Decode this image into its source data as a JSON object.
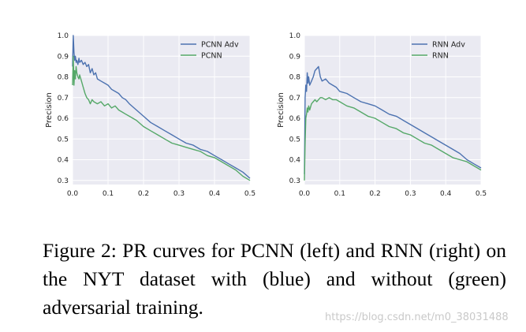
{
  "chart_data": [
    {
      "type": "line",
      "title": "",
      "xlabel": "",
      "ylabel": "Precision",
      "xlim": [
        0.0,
        0.5
      ],
      "ylim": [
        0.28,
        1.0
      ],
      "xticks": [
        "0.0",
        "0.1",
        "0.2",
        "0.3",
        "0.4",
        "0.5"
      ],
      "yticks": [
        "0.3",
        "0.4",
        "0.5",
        "0.6",
        "0.7",
        "0.8",
        "0.9",
        "1.0"
      ],
      "grid": true,
      "legend_position": "top-right",
      "series": [
        {
          "name": "PCNN Adv",
          "color": "#4c72b0",
          "x": [
            0.0,
            0.002,
            0.004,
            0.006,
            0.008,
            0.01,
            0.012,
            0.015,
            0.018,
            0.02,
            0.025,
            0.03,
            0.035,
            0.04,
            0.045,
            0.05,
            0.055,
            0.06,
            0.065,
            0.07,
            0.08,
            0.09,
            0.1,
            0.11,
            0.12,
            0.13,
            0.14,
            0.15,
            0.16,
            0.18,
            0.2,
            0.22,
            0.24,
            0.26,
            0.28,
            0.3,
            0.32,
            0.34,
            0.36,
            0.38,
            0.4,
            0.42,
            0.44,
            0.46,
            0.48,
            0.5
          ],
          "y": [
            0.85,
            1.0,
            0.92,
            0.88,
            0.9,
            0.87,
            0.88,
            0.86,
            0.89,
            0.87,
            0.88,
            0.86,
            0.87,
            0.85,
            0.86,
            0.82,
            0.84,
            0.81,
            0.82,
            0.79,
            0.78,
            0.77,
            0.76,
            0.74,
            0.73,
            0.72,
            0.7,
            0.69,
            0.67,
            0.64,
            0.61,
            0.58,
            0.56,
            0.54,
            0.52,
            0.5,
            0.48,
            0.47,
            0.45,
            0.44,
            0.42,
            0.4,
            0.38,
            0.36,
            0.34,
            0.31
          ]
        },
        {
          "name": "PCNN",
          "color": "#55a868",
          "x": [
            0.0,
            0.002,
            0.004,
            0.006,
            0.008,
            0.01,
            0.012,
            0.015,
            0.018,
            0.02,
            0.025,
            0.03,
            0.035,
            0.04,
            0.045,
            0.05,
            0.055,
            0.06,
            0.07,
            0.08,
            0.09,
            0.1,
            0.11,
            0.12,
            0.13,
            0.14,
            0.15,
            0.16,
            0.18,
            0.2,
            0.22,
            0.24,
            0.26,
            0.28,
            0.3,
            0.32,
            0.34,
            0.36,
            0.38,
            0.4,
            0.42,
            0.44,
            0.46,
            0.48,
            0.5
          ],
          "y": [
            0.76,
            0.9,
            0.76,
            0.83,
            0.79,
            0.85,
            0.82,
            0.8,
            0.79,
            0.81,
            0.78,
            0.75,
            0.72,
            0.7,
            0.69,
            0.67,
            0.69,
            0.68,
            0.67,
            0.68,
            0.66,
            0.67,
            0.65,
            0.66,
            0.64,
            0.63,
            0.62,
            0.61,
            0.59,
            0.56,
            0.54,
            0.52,
            0.5,
            0.48,
            0.47,
            0.46,
            0.45,
            0.44,
            0.42,
            0.41,
            0.39,
            0.37,
            0.35,
            0.32,
            0.3
          ]
        }
      ]
    },
    {
      "type": "line",
      "title": "",
      "xlabel": "",
      "ylabel": "Precision",
      "xlim": [
        0.0,
        0.5
      ],
      "ylim": [
        0.28,
        1.0
      ],
      "xticks": [
        "0.0",
        "0.1",
        "0.2",
        "0.3",
        "0.4",
        "0.5"
      ],
      "yticks": [
        "0.3",
        "0.4",
        "0.5",
        "0.6",
        "0.7",
        "0.8",
        "0.9",
        "1.0"
      ],
      "grid": true,
      "legend_position": "top-right",
      "series": [
        {
          "name": "RNN Adv",
          "color": "#4c72b0",
          "x": [
            0.0,
            0.002,
            0.004,
            0.006,
            0.008,
            0.01,
            0.012,
            0.015,
            0.02,
            0.025,
            0.03,
            0.035,
            0.04,
            0.045,
            0.05,
            0.06,
            0.07,
            0.08,
            0.09,
            0.1,
            0.12,
            0.14,
            0.16,
            0.18,
            0.2,
            0.22,
            0.24,
            0.26,
            0.28,
            0.3,
            0.32,
            0.34,
            0.36,
            0.38,
            0.4,
            0.42,
            0.44,
            0.46,
            0.48,
            0.5
          ],
          "y": [
            0.33,
            0.7,
            0.76,
            0.73,
            0.82,
            0.77,
            0.8,
            0.76,
            0.78,
            0.8,
            0.83,
            0.84,
            0.85,
            0.8,
            0.78,
            0.79,
            0.77,
            0.76,
            0.75,
            0.73,
            0.72,
            0.7,
            0.68,
            0.67,
            0.66,
            0.64,
            0.62,
            0.61,
            0.59,
            0.57,
            0.55,
            0.53,
            0.51,
            0.49,
            0.47,
            0.45,
            0.43,
            0.4,
            0.38,
            0.36
          ]
        },
        {
          "name": "RNN",
          "color": "#55a868",
          "x": [
            0.0,
            0.002,
            0.004,
            0.006,
            0.008,
            0.01,
            0.012,
            0.015,
            0.02,
            0.025,
            0.03,
            0.035,
            0.04,
            0.045,
            0.05,
            0.06,
            0.07,
            0.08,
            0.09,
            0.1,
            0.12,
            0.14,
            0.16,
            0.18,
            0.2,
            0.22,
            0.24,
            0.26,
            0.28,
            0.3,
            0.32,
            0.34,
            0.36,
            0.38,
            0.4,
            0.42,
            0.44,
            0.46,
            0.48,
            0.5
          ],
          "y": [
            0.3,
            0.48,
            0.6,
            0.62,
            0.65,
            0.63,
            0.66,
            0.64,
            0.67,
            0.68,
            0.69,
            0.68,
            0.69,
            0.7,
            0.7,
            0.69,
            0.7,
            0.69,
            0.69,
            0.68,
            0.66,
            0.65,
            0.63,
            0.61,
            0.6,
            0.58,
            0.56,
            0.55,
            0.53,
            0.52,
            0.5,
            0.48,
            0.47,
            0.45,
            0.43,
            0.41,
            0.4,
            0.39,
            0.37,
            0.35
          ]
        }
      ]
    }
  ],
  "caption": "Figure 2:  PR curves for PCNN (left) and RNN (right) on the NYT dataset with (blue) and without (green) adversarial training.",
  "watermark": "https://blog.csdn.net/m0_38031488"
}
